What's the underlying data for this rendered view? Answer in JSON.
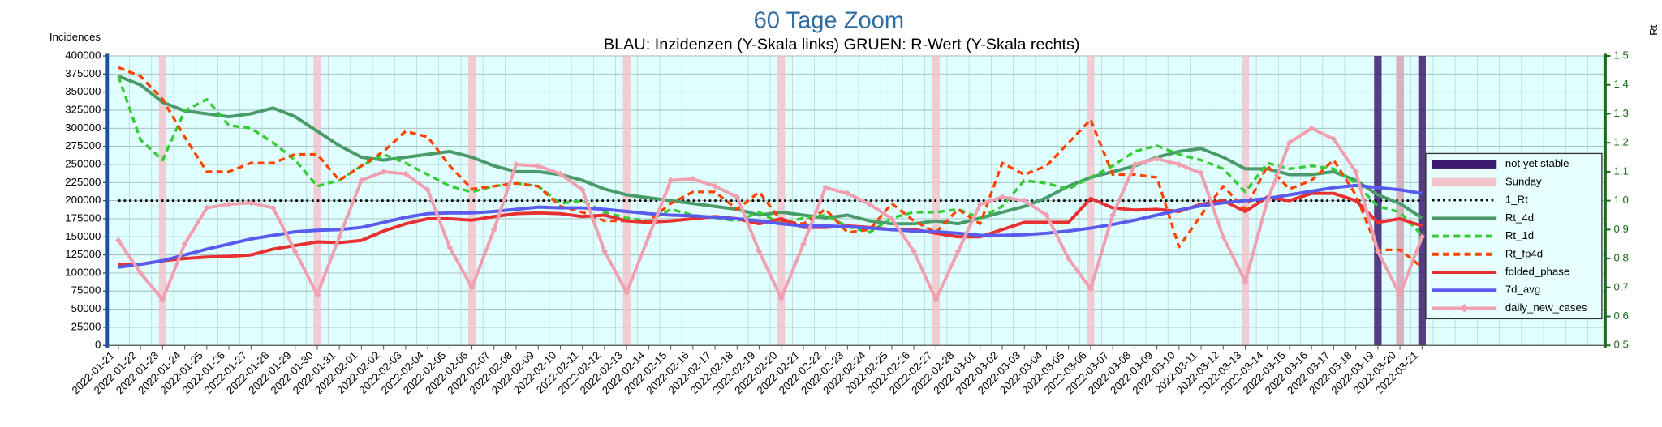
{
  "chart_data": {
    "type": "line",
    "title": "60 Tage Zoom",
    "subtitle": "BLAU: Inzidenzen (Y-Skala links)     GRUEN: R-Wert (Y-Skala rechts)",
    "y_label": "Incidences",
    "y2_label": "Rt",
    "categories": [
      "2022-01-21",
      "2022-01-22",
      "2022-01-23",
      "2022-01-24",
      "2022-01-25",
      "2022-01-26",
      "2022-01-27",
      "2022-01-28",
      "2022-01-29",
      "2022-01-30",
      "2022-01-31",
      "2022-02-01",
      "2022-02-02",
      "2022-02-03",
      "2022-02-04",
      "2022-02-05",
      "2022-02-06",
      "2022-02-07",
      "2022-02-08",
      "2022-02-09",
      "2022-02-10",
      "2022-02-11",
      "2022-02-12",
      "2022-02-13",
      "2022-02-14",
      "2022-02-15",
      "2022-02-16",
      "2022-02-17",
      "2022-02-18",
      "2022-02-19",
      "2022-02-20",
      "2022-02-21",
      "2022-02-22",
      "2022-02-23",
      "2022-02-24",
      "2022-02-25",
      "2022-02-26",
      "2022-02-27",
      "2022-02-28",
      "2022-03-01",
      "2022-03-02",
      "2022-03-03",
      "2022-03-04",
      "2022-03-05",
      "2022-03-06",
      "2022-03-07",
      "2022-03-08",
      "2022-03-09",
      "2022-03-10",
      "2022-03-11",
      "2022-03-12",
      "2022-03-13",
      "2022-03-14",
      "2022-03-15",
      "2022-03-16",
      "2022-03-17",
      "2022-03-18",
      "2022-03-19",
      "2022-03-20",
      "2022-03-21"
    ],
    "ylim": [
      0,
      400000
    ],
    "yticks": [
      0,
      25000,
      50000,
      75000,
      100000,
      125000,
      150000,
      175000,
      200000,
      225000,
      250000,
      275000,
      300000,
      325000,
      350000,
      375000,
      400000
    ],
    "y2lim": [
      0.5,
      1.5
    ],
    "y2ticks": [
      {
        "value": 0.5,
        "label": "0,5"
      },
      {
        "value": 0.6,
        "label": "0,6"
      },
      {
        "value": 0.7,
        "label": "0,7"
      },
      {
        "value": 0.8,
        "label": "0,8"
      },
      {
        "value": 0.9,
        "label": "0,9"
      },
      {
        "value": 1.0,
        "label": "1,0"
      },
      {
        "value": 1.1,
        "label": "1,1"
      },
      {
        "value": 1.2,
        "label": "1,2"
      },
      {
        "value": 1.3,
        "label": "1,3"
      },
      {
        "value": 1.4,
        "label": "1,4"
      },
      {
        "value": 1.5,
        "label": "1,5"
      }
    ],
    "grid": true,
    "legend": "right",
    "background": "#e0ffff",
    "series": [
      {
        "name": "not yet stable",
        "kind": "bar",
        "color": "#3c1a6e",
        "values": [
          null,
          null,
          null,
          null,
          null,
          null,
          null,
          null,
          null,
          null,
          null,
          null,
          null,
          null,
          null,
          null,
          null,
          null,
          null,
          null,
          null,
          null,
          null,
          null,
          null,
          null,
          null,
          null,
          null,
          null,
          null,
          null,
          null,
          null,
          null,
          null,
          null,
          null,
          null,
          null,
          null,
          null,
          null,
          null,
          null,
          null,
          null,
          null,
          null,
          null,
          null,
          null,
          null,
          null,
          null,
          null,
          null,
          400000,
          400000,
          400000
        ]
      },
      {
        "name": "Sunday",
        "kind": "bar",
        "color": "#f2c4ca",
        "values": [
          null,
          null,
          400000,
          null,
          null,
          null,
          null,
          null,
          null,
          400000,
          null,
          null,
          null,
          null,
          null,
          null,
          400000,
          null,
          null,
          null,
          null,
          null,
          null,
          400000,
          null,
          null,
          null,
          null,
          null,
          null,
          400000,
          null,
          null,
          null,
          null,
          null,
          null,
          400000,
          null,
          null,
          null,
          null,
          null,
          null,
          400000,
          null,
          null,
          null,
          null,
          null,
          null,
          400000,
          null,
          null,
          null,
          null,
          null,
          null,
          400000,
          null
        ]
      },
      {
        "name": "1_Rt",
        "kind": "line",
        "axis": "y2",
        "dash": "dotted",
        "color": "#000000",
        "values": [
          1,
          1,
          1,
          1,
          1,
          1,
          1,
          1,
          1,
          1,
          1,
          1,
          1,
          1,
          1,
          1,
          1,
          1,
          1,
          1,
          1,
          1,
          1,
          1,
          1,
          1,
          1,
          1,
          1,
          1,
          1,
          1,
          1,
          1,
          1,
          1,
          1,
          1,
          1,
          1,
          1,
          1,
          1,
          1,
          1,
          1,
          1,
          1,
          1,
          1,
          1,
          1,
          1,
          1,
          1,
          1,
          1,
          1,
          1,
          1
        ]
      },
      {
        "name": "Rt_4d",
        "kind": "line",
        "axis": "y2",
        "dash": "solid",
        "color": "#4a9a6a",
        "values": [
          1.43,
          1.4,
          1.34,
          1.31,
          1.3,
          1.29,
          1.3,
          1.32,
          1.29,
          1.24,
          1.19,
          1.15,
          1.14,
          1.15,
          1.16,
          1.17,
          1.15,
          1.12,
          1.1,
          1.1,
          1.09,
          1.07,
          1.04,
          1.02,
          1.01,
          1.0,
          0.99,
          0.98,
          0.97,
          0.95,
          0.96,
          0.95,
          0.94,
          0.95,
          0.93,
          0.92,
          0.92,
          0.93,
          0.92,
          0.94,
          0.96,
          0.98,
          1.01,
          1.05,
          1.08,
          1.1,
          1.12,
          1.15,
          1.17,
          1.18,
          1.15,
          1.11,
          1.11,
          1.09,
          1.09,
          1.1,
          1.07,
          1.02,
          0.99,
          0.94
        ]
      },
      {
        "name": "Rt_1d",
        "kind": "line",
        "axis": "y2",
        "dash": "dashed",
        "color": "#33cc33",
        "values": [
          1.43,
          1.21,
          1.14,
          1.31,
          1.35,
          1.26,
          1.25,
          1.2,
          1.14,
          1.05,
          1.07,
          1.12,
          1.16,
          1.13,
          1.09,
          1.05,
          1.03,
          1.05,
          1.06,
          1.05,
          0.99,
          1.0,
          0.96,
          0.94,
          0.93,
          0.97,
          0.95,
          0.94,
          0.93,
          0.96,
          0.92,
          0.94,
          0.95,
          0.91,
          0.89,
          0.94,
          0.96,
          0.96,
          0.97,
          0.94,
          0.98,
          1.07,
          1.06,
          1.04,
          1.08,
          1.12,
          1.17,
          1.19,
          1.16,
          1.14,
          1.11,
          1.03,
          1.13,
          1.11,
          1.12,
          1.11,
          1.06,
          0.98,
          0.96,
          0.88
        ]
      },
      {
        "name": "Rt_fp4d",
        "kind": "line",
        "axis": "y2",
        "dash": "dashed",
        "color": "#ff4400",
        "values": [
          1.46,
          1.43,
          1.35,
          1.22,
          1.1,
          1.1,
          1.13,
          1.13,
          1.16,
          1.16,
          1.07,
          1.12,
          1.17,
          1.24,
          1.22,
          1.12,
          1.04,
          1.05,
          1.06,
          1.05,
          0.98,
          0.96,
          0.93,
          0.93,
          0.93,
          0.99,
          1.03,
          1.03,
          0.97,
          1.03,
          0.93,
          0.92,
          0.97,
          0.89,
          0.9,
          0.99,
          0.93,
          0.89,
          0.97,
          0.92,
          1.13,
          1.09,
          1.12,
          1.2,
          1.28,
          1.09,
          1.09,
          1.08,
          0.84,
          0.95,
          1.05,
          0.97,
          1.12,
          1.04,
          1.07,
          1.14,
          1.02,
          0.83,
          0.83,
          0.77
        ]
      },
      {
        "name": "folded_phase",
        "kind": "line",
        "dash": "solid",
        "color": "#e83030",
        "values": [
          112000,
          112000,
          117000,
          120000,
          122000,
          123000,
          125000,
          133000,
          138000,
          143000,
          142000,
          145000,
          158000,
          168000,
          175000,
          175000,
          173000,
          178000,
          182000,
          183000,
          182000,
          178000,
          180000,
          172000,
          170000,
          172000,
          175000,
          178000,
          175000,
          168000,
          175000,
          163000,
          163000,
          165000,
          163000,
          160000,
          160000,
          155000,
          150000,
          150000,
          160000,
          170000,
          170000,
          170000,
          203000,
          190000,
          187000,
          188000,
          185000,
          195000,
          200000,
          185000,
          205000,
          200000,
          210000,
          210000,
          200000,
          170000,
          175000,
          165000
        ]
      },
      {
        "name": "7d_avg",
        "kind": "line",
        "dash": "solid",
        "color": "#5a5aee",
        "values": [
          108000,
          112000,
          117000,
          125000,
          133000,
          140000,
          147000,
          152000,
          157000,
          159000,
          160000,
          163000,
          170000,
          177000,
          182000,
          183000,
          183000,
          185000,
          188000,
          191000,
          190000,
          190000,
          188000,
          185000,
          182000,
          180000,
          179000,
          177000,
          175000,
          172000,
          168000,
          165000,
          165000,
          164000,
          162000,
          160000,
          158000,
          157000,
          155000,
          152000,
          152000,
          153000,
          155000,
          158000,
          162000,
          167000,
          173000,
          180000,
          187000,
          193000,
          197000,
          200000,
          203000,
          208000,
          213000,
          218000,
          221000,
          218000,
          215000,
          210000
        ]
      },
      {
        "name": "daily_new_cases",
        "kind": "line",
        "dash": "solid",
        "marker": "diamond",
        "color": "#f0a0b0",
        "values": [
          145000,
          100000,
          63000,
          140000,
          190000,
          195000,
          197000,
          190000,
          130000,
          70000,
          150000,
          228000,
          240000,
          237000,
          215000,
          135000,
          80000,
          160000,
          250000,
          248000,
          237000,
          215000,
          130000,
          73000,
          150000,
          228000,
          230000,
          220000,
          205000,
          130000,
          65000,
          140000,
          218000,
          210000,
          195000,
          175000,
          130000,
          63000,
          130000,
          195000,
          205000,
          200000,
          180000,
          120000,
          78000,
          180000,
          250000,
          258000,
          250000,
          238000,
          150000,
          88000,
          200000,
          280000,
          300000,
          285000,
          240000,
          130000,
          70000,
          150000
        ]
      }
    ]
  }
}
